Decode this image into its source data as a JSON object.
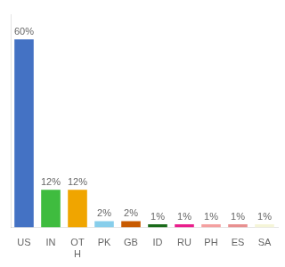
{
  "chart_data": {
    "type": "bar",
    "categories": [
      "US",
      "IN",
      "OT\nH",
      "PK",
      "GB",
      "ID",
      "RU",
      "PH",
      "ES",
      "SA"
    ],
    "values": [
      60,
      12,
      12,
      2,
      2,
      1,
      1,
      1,
      1,
      1
    ],
    "value_labels": [
      "60%",
      "12%",
      "12%",
      "2%",
      "2%",
      "1%",
      "1%",
      "1%",
      "1%",
      "1%"
    ],
    "data_labels": true,
    "colors": [
      "#4472c4",
      "#3fbc3f",
      "#f0a500",
      "#87ceeb",
      "#c85a00",
      "#1a6b1a",
      "#e91e8c",
      "#f4a0a0",
      "#e89090",
      "#f5f5d8"
    ],
    "ylim": [
      0,
      68
    ],
    "grid": false,
    "tick_labels": "x"
  }
}
